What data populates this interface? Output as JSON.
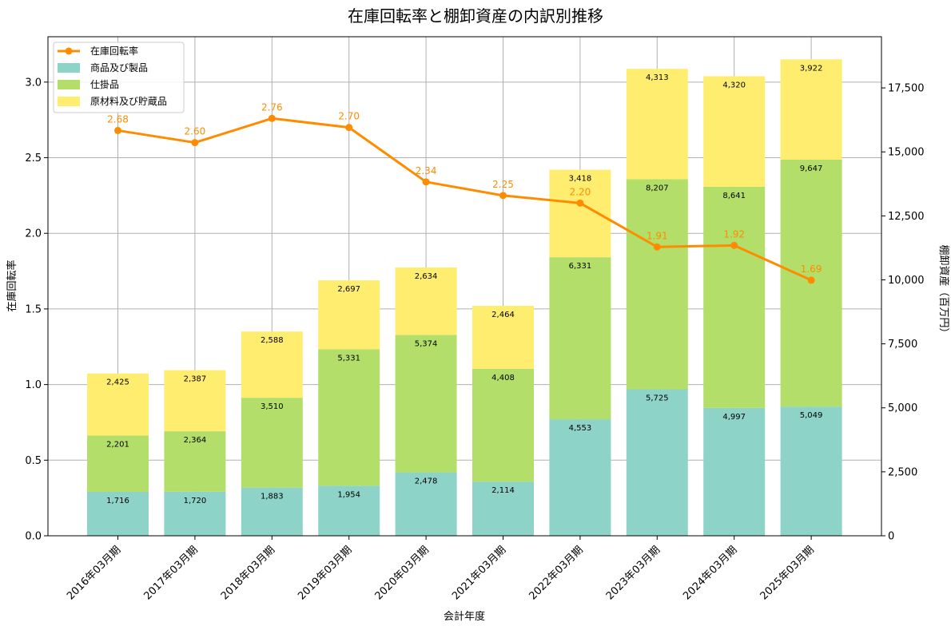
{
  "chart_data": {
    "type": "bar",
    "stacked": true,
    "title": "在庫回転率と棚卸資産の内訳別推移",
    "xlabel": "会計年度",
    "ylabel_left": "在庫回転率",
    "ylabel_right": "棚卸資産（百万円）",
    "categories": [
      "2016年03月期",
      "2017年03月期",
      "2018年03月期",
      "2019年03月期",
      "2020年03月期",
      "2021年03月期",
      "2022年03月期",
      "2023年03月期",
      "2024年03月期",
      "2025年03月期"
    ],
    "series": [
      {
        "name": "商品及び製品",
        "color": "#8dd3c7",
        "axis": "right",
        "values": [
          1716,
          1720,
          1883,
          1954,
          2478,
          2114,
          4553,
          5725,
          4997,
          5049
        ],
        "labels": [
          "1,716",
          "1,720",
          "1,883",
          "1,954",
          "2,478",
          "2,114",
          "4,553",
          "5,725",
          "4,997",
          "5,049"
        ]
      },
      {
        "name": "仕掛品",
        "color": "#b3de69",
        "axis": "right",
        "values": [
          2201,
          2364,
          3510,
          5331,
          5374,
          4408,
          6331,
          8207,
          8641,
          9647
        ],
        "labels": [
          "2,201",
          "2,364",
          "3,510",
          "5,331",
          "5,374",
          "4,408",
          "6,331",
          "8,207",
          "8,641",
          "9,647"
        ]
      },
      {
        "name": "原材料及び貯蔵品",
        "color": "#ffed6f",
        "axis": "right",
        "values": [
          2425,
          2387,
          2588,
          2697,
          2634,
          2464,
          3418,
          4313,
          4320,
          3922
        ],
        "labels": [
          "2,425",
          "2,387",
          "2,588",
          "2,697",
          "2,634",
          "2,464",
          "3,418",
          "4,313",
          "4,320",
          "3,922"
        ]
      }
    ],
    "line": {
      "name": "在庫回転率",
      "color": "#ff8c00",
      "axis": "left",
      "values": [
        2.68,
        2.6,
        2.76,
        2.7,
        2.34,
        2.25,
        2.2,
        1.91,
        1.92,
        1.69
      ],
      "labels": [
        "2.68",
        "2.60",
        "2.76",
        "2.70",
        "2.34",
        "2.25",
        "2.20",
        "1.91",
        "1.92",
        "1.69"
      ]
    },
    "ylim_left": [
      0,
      3.3
    ],
    "ylim_right": [
      0,
      19500
    ],
    "yticks_left": [
      "0.0",
      "0.5",
      "1.0",
      "1.5",
      "2.0",
      "2.5",
      "3.0"
    ],
    "yticks_right": [
      "0",
      "2,500",
      "5,000",
      "7,500",
      "10,000",
      "12,500",
      "15,000",
      "17,500"
    ],
    "grid": true,
    "legend": "top-left"
  }
}
